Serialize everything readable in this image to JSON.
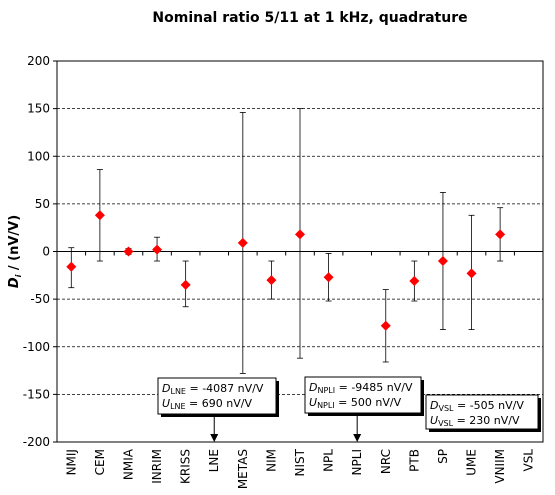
{
  "chart_data": {
    "type": "scatter",
    "title": "Nominal ratio 5/11 at 1 kHz, quadrature",
    "xlabel": "",
    "ylabel": {
      "main": "D",
      "sub": "i",
      "unit": " / (nV/V)"
    },
    "ylim": [
      -200,
      200
    ],
    "yticks": [
      -200,
      -150,
      -100,
      -50,
      0,
      50,
      100,
      150,
      200
    ],
    "grid": "horizontal dashed",
    "marker_color": "#ff0000",
    "categories": [
      "NMIJ",
      "CEM",
      "NMIA",
      "INRIM",
      "KRISS",
      "LNE",
      "METAS",
      "NIM",
      "NIST",
      "NPL",
      "NPLI",
      "NRC",
      "PTB",
      "SP",
      "UME",
      "VNIIM",
      "VSL"
    ],
    "series": [
      {
        "values": [
          -16,
          38,
          0,
          2,
          -35,
          null,
          9,
          -30,
          18,
          -27,
          null,
          -78,
          -31,
          -10,
          -23,
          18,
          null
        ],
        "err_low": [
          -38,
          -10,
          -3,
          -10,
          -58,
          null,
          -128,
          -50,
          -112,
          -52,
          null,
          -116,
          -52,
          -82,
          -82,
          -10,
          null
        ],
        "err_high": [
          4,
          86,
          3,
          15,
          -10,
          null,
          146,
          -10,
          150,
          -2,
          null,
          -40,
          -10,
          62,
          38,
          46,
          null
        ]
      }
    ],
    "annotations": [
      {
        "category": "LNE",
        "d_main": "D",
        "d_sub": "LNE",
        "d_val": " = -4087 nV/V",
        "u_main": "U",
        "u_sub": "LNE",
        "u_val": " = 690 nV/V",
        "arrow": true
      },
      {
        "category": "NPLI",
        "d_main": "D",
        "d_sub": "NPLI",
        "d_val": " = -9485 nV/V",
        "u_main": "U",
        "u_sub": "NPLI",
        "u_val": " = 500 nV/V",
        "arrow": true
      },
      {
        "category": "VSL",
        "d_main": "D",
        "d_sub": "VSL",
        "d_val": " = -505 nV/V",
        "u_main": "U",
        "u_sub": "VSL",
        "u_val": " = 230 nV/V",
        "arrow": false
      }
    ]
  }
}
